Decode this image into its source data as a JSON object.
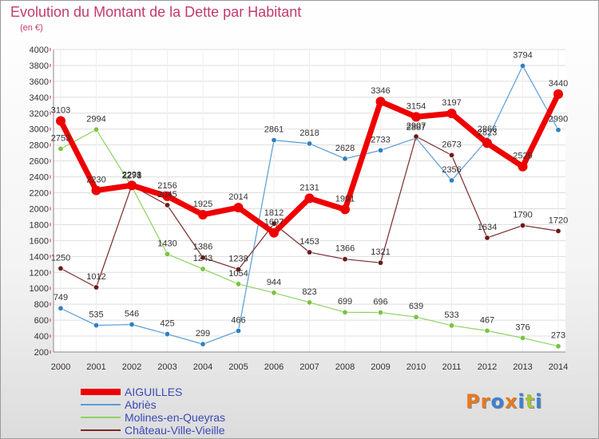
{
  "title": "Evolution du Montant de la Dette par Habitant",
  "subtitle": "(en €)",
  "logo": {
    "text": "Proxiti",
    "letter_colors": [
      "#e8791e",
      "#e8791e",
      "#3f7fd0",
      "#e8791e",
      "#3f7fd0",
      "#a7c437",
      "#3f7fd0"
    ]
  },
  "chart_data": {
    "type": "line",
    "x": [
      2000,
      2001,
      2002,
      2003,
      2004,
      2005,
      2006,
      2007,
      2008,
      2009,
      2010,
      2011,
      2012,
      2013,
      2014
    ],
    "ylim": [
      200,
      4000
    ],
    "yticks": [
      200,
      400,
      600,
      800,
      1000,
      1200,
      1400,
      1600,
      1800,
      2000,
      2200,
      2400,
      2600,
      2800,
      3000,
      3200,
      3400,
      3600,
      3800,
      4000
    ],
    "grid": true,
    "legend_position": "bottom-left",
    "series": [
      {
        "name": "Abriès",
        "color": "#5a9bd5",
        "marker_color": "#2f7fc1",
        "line_width": 1.2,
        "values": [
          749,
          535,
          546,
          425,
          299,
          466,
          2861,
          2818,
          2628,
          2733,
          2887,
          2356,
          2866,
          3794,
          2990
        ]
      },
      {
        "name": "Molines-en-Queyras",
        "color": "#8dd35f",
        "marker_color": "#7bc242",
        "line_width": 1.2,
        "values": [
          2753,
          2994,
          2278,
          1430,
          1243,
          1054,
          944,
          823,
          699,
          696,
          639,
          533,
          467,
          376,
          273
        ]
      },
      {
        "name": "Château-Ville-Vieille",
        "color": "#7a2a2a",
        "marker_color": "#6b1a1a",
        "line_width": 1.2,
        "values": [
          1250,
          1012,
          2291,
          2045,
          1386,
          1238,
          1812,
          1453,
          1366,
          1321,
          2907,
          2673,
          1634,
          1790,
          1720
        ]
      },
      {
        "name": "AIGUILLES",
        "color": "#ee0000",
        "marker_color": "#ee0000",
        "line_width": 7,
        "values": [
          3103,
          2230,
          2293,
          2156,
          1925,
          2014,
          1697,
          2131,
          1991,
          3346,
          3154,
          3197,
          2823,
          2529,
          3440
        ]
      }
    ],
    "legend_order": [
      "AIGUILLES",
      "Abriès",
      "Molines-en-Queyras",
      "Château-Ville-Vieille"
    ]
  }
}
